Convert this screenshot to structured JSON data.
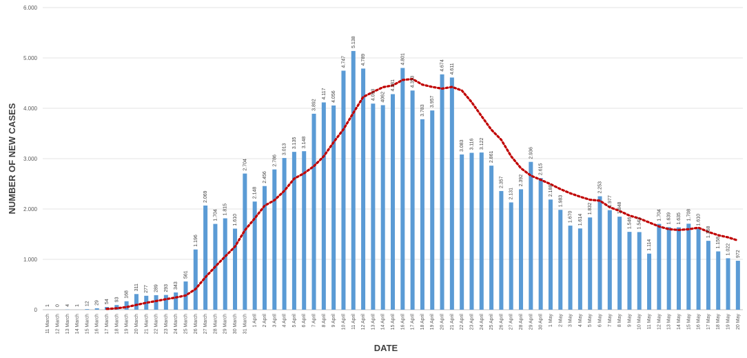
{
  "chart_data": {
    "type": "bar",
    "xlabel": "DATE",
    "ylabel": "NUMBER OF NEW CASES",
    "ylim": [
      0,
      6000
    ],
    "y_ticks": [
      "0",
      "1.000",
      "2.000",
      "3.000",
      "4.000",
      "5.000",
      "6.000"
    ],
    "grid": true,
    "bar_color": "#5b9bd5",
    "trend_color": "#c00000",
    "trend_style": "dotted moving average",
    "categories": [
      "11 March",
      "12 March",
      "13 March",
      "14 March",
      "15 March",
      "16 March",
      "17 March",
      "18 March",
      "19 March",
      "20 March",
      "21 March",
      "22 March",
      "23 March",
      "24 March",
      "25 March",
      "26 March",
      "27 March",
      "28 March",
      "29 March",
      "30 March",
      "31 March",
      "1 April",
      "2 April",
      "3 April",
      "4 April",
      "5 April",
      "6 April",
      "7 April",
      "8 April",
      "9 April",
      "10 April",
      "11 April",
      "12 April",
      "13 April",
      "14 April",
      "15 April",
      "16 April",
      "17 April",
      "18 April",
      "19 April",
      "20 April",
      "21 April",
      "22 April",
      "23 April",
      "24 April",
      "25 April",
      "26 April",
      "27 April",
      "28 April",
      "29 April",
      "30 April",
      "1 May",
      "2 May",
      "3 May",
      "4 May",
      "5 May",
      "6 May",
      "7 May",
      "8 May",
      "9 May",
      "10 May",
      "11 May",
      "12 May",
      "13 May",
      "14 May",
      "15 May",
      "16 May",
      "17 May",
      "18 May",
      "19 May",
      "20 May"
    ],
    "values": [
      1,
      0,
      4,
      1,
      12,
      29,
      54,
      93,
      168,
      311,
      277,
      289,
      293,
      343,
      561,
      1196,
      2069,
      1704,
      1815,
      1610,
      2704,
      2148,
      2456,
      2786,
      3013,
      3135,
      3148,
      3892,
      4117,
      4056,
      4747,
      5138,
      4789,
      4093,
      4062,
      4281,
      4801,
      4353,
      3783,
      3957,
      4674,
      4611,
      3083,
      3116,
      3122,
      2861,
      2357,
      2131,
      2392,
      2936,
      2615,
      2188,
      1983,
      1670,
      1614,
      1832,
      2253,
      1977,
      1848,
      1546,
      1542,
      1114,
      1704,
      1639,
      1635,
      1708,
      1610,
      1368,
      1158,
      1022,
      972
    ],
    "labels": [
      "1",
      "0",
      "4",
      "1",
      "12",
      "29",
      "54",
      "93",
      "168",
      "311",
      "277",
      "289",
      "293",
      "343",
      "561",
      "1.196",
      "2.069",
      "1.704",
      "1.815",
      "1.610",
      "2.704",
      "2.148",
      "2.456",
      "2.786",
      "3.013",
      "3.135",
      "3.148",
      "3.892",
      "4.117",
      "4.056",
      "4.747",
      "5.138",
      "4.789",
      "4.093",
      "4062",
      "4.281",
      "4.801",
      "4.353",
      "3.783",
      "3.957",
      "4.674",
      "4.611",
      "3.083",
      "3.116",
      "3.122",
      "2.861",
      "2.357",
      "2.131",
      "2.392",
      "2.936",
      "2.615",
      "2.188",
      "1.983",
      "1.670",
      "1.614",
      "1.832",
      "2.253",
      "1.977",
      "1.848",
      "1.546",
      "1.542",
      "1.114",
      "1.704",
      "1.639",
      "1.635",
      "1.708",
      "1.610",
      "1.368",
      "1.158",
      "1.022",
      "972"
    ],
    "trend": [
      null,
      null,
      null,
      null,
      null,
      null,
      15,
      29,
      52,
      96,
      139,
      172,
      210,
      242,
      283,
      411,
      645,
      856,
      1058,
      1254,
      1580,
      1815,
      2066,
      2175,
      2361,
      2603,
      2710,
      2851,
      3046,
      3326,
      3585,
      3910,
      4226,
      4325,
      4419,
      4455,
      4563,
      4582,
      4470,
      4424,
      4390,
      4425,
      4354,
      4121,
      3844,
      3574,
      3374,
      3048,
      2809,
      2663,
      2581,
      2493,
      2395,
      2313,
      2244,
      2184,
      2166,
      2036,
      1962,
      1870,
      1812,
      1733,
      1654,
      1598,
      1584,
      1598,
      1629,
      1545,
      1481,
      1437,
      1375
    ]
  }
}
